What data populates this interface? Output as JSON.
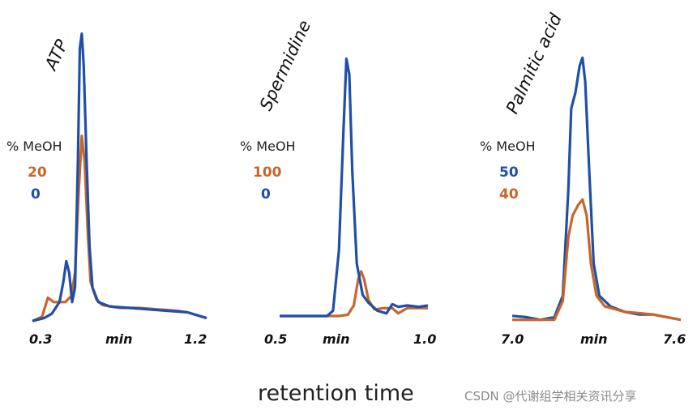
{
  "colors": {
    "blue": "#1f4fa8",
    "orange": "#c8662a"
  },
  "xlabel": "retention time",
  "watermark": "CSDN @代谢组学相关资讯分享",
  "chart_data": [
    {
      "type": "line",
      "title": "ATP",
      "legend_header": "% MeOH",
      "xlim": [
        0.3,
        1.2
      ],
      "ylim": [
        0,
        1
      ],
      "x_ticks": [
        "0.3",
        "min",
        "1.2"
      ],
      "series": [
        {
          "name": "20",
          "color": "orange",
          "points": [
            [
              0.3,
              0.005
            ],
            [
              0.35,
              0.02
            ],
            [
              0.38,
              0.085
            ],
            [
              0.41,
              0.07
            ],
            [
              0.44,
              0.07
            ],
            [
              0.47,
              0.07
            ],
            [
              0.5,
              0.09
            ],
            [
              0.52,
              0.17
            ],
            [
              0.54,
              0.46
            ],
            [
              0.555,
              0.64
            ],
            [
              0.57,
              0.55
            ],
            [
              0.585,
              0.32
            ],
            [
              0.6,
              0.14
            ],
            [
              0.63,
              0.08
            ],
            [
              0.66,
              0.06
            ],
            [
              0.75,
              0.05
            ],
            [
              0.85,
              0.05
            ],
            [
              0.95,
              0.045
            ],
            [
              1.05,
              0.04
            ],
            [
              1.1,
              0.035
            ],
            [
              1.15,
              0.025
            ],
            [
              1.2,
              0.015
            ]
          ]
        },
        {
          "name": "0",
          "color": "blue",
          "points": [
            [
              0.3,
              0.005
            ],
            [
              0.36,
              0.015
            ],
            [
              0.4,
              0.03
            ],
            [
              0.44,
              0.07
            ],
            [
              0.46,
              0.14
            ],
            [
              0.475,
              0.21
            ],
            [
              0.49,
              0.17
            ],
            [
              0.505,
              0.07
            ],
            [
              0.52,
              0.12
            ],
            [
              0.535,
              0.55
            ],
            [
              0.545,
              0.94
            ],
            [
              0.555,
              0.99
            ],
            [
              0.565,
              0.88
            ],
            [
              0.58,
              0.55
            ],
            [
              0.595,
              0.26
            ],
            [
              0.61,
              0.12
            ],
            [
              0.64,
              0.07
            ],
            [
              0.7,
              0.055
            ],
            [
              0.8,
              0.05
            ],
            [
              0.9,
              0.045
            ],
            [
              1.0,
              0.04
            ],
            [
              1.1,
              0.035
            ],
            [
              1.15,
              0.025
            ],
            [
              1.2,
              0.015
            ]
          ]
        }
      ]
    },
    {
      "type": "line",
      "title": "Spermidine",
      "legend_header": "% MeOH",
      "xlim": [
        0.5,
        1.0
      ],
      "ylim": [
        0,
        1
      ],
      "x_ticks": [
        "0.5",
        "min",
        "1.0"
      ],
      "series": [
        {
          "name": "100",
          "color": "orange",
          "points": [
            [
              0.5,
              0.0
            ],
            [
              0.6,
              0.0
            ],
            [
              0.7,
              0.0
            ],
            [
              0.73,
              0.005
            ],
            [
              0.75,
              0.04
            ],
            [
              0.765,
              0.14
            ],
            [
              0.775,
              0.17
            ],
            [
              0.785,
              0.14
            ],
            [
              0.8,
              0.06
            ],
            [
              0.82,
              0.025
            ],
            [
              0.85,
              0.03
            ],
            [
              0.88,
              0.03
            ],
            [
              0.9,
              0.01
            ],
            [
              0.93,
              0.03
            ],
            [
              0.97,
              0.03
            ],
            [
              1.0,
              0.03
            ]
          ]
        },
        {
          "name": "0",
          "color": "blue",
          "points": [
            [
              0.5,
              0.0
            ],
            [
              0.6,
              0.0
            ],
            [
              0.66,
              0.0
            ],
            [
              0.68,
              0.02
            ],
            [
              0.7,
              0.25
            ],
            [
              0.715,
              0.7
            ],
            [
              0.725,
              0.98
            ],
            [
              0.735,
              0.92
            ],
            [
              0.745,
              0.55
            ],
            [
              0.76,
              0.2
            ],
            [
              0.78,
              0.08
            ],
            [
              0.8,
              0.05
            ],
            [
              0.83,
              0.02
            ],
            [
              0.86,
              0.01
            ],
            [
              0.88,
              0.045
            ],
            [
              0.9,
              0.035
            ],
            [
              0.93,
              0.04
            ],
            [
              0.97,
              0.035
            ],
            [
              1.0,
              0.04
            ]
          ]
        }
      ]
    },
    {
      "type": "line",
      "title": "Palmitic acid",
      "legend_header": "% MeOH",
      "xlim": [
        7.0,
        7.6
      ],
      "ylim": [
        0,
        1
      ],
      "x_ticks": [
        "7.0",
        "min",
        "7.6"
      ],
      "series": [
        {
          "name": "50",
          "color": "blue",
          "points": [
            [
              7.0,
              0.025
            ],
            [
              7.05,
              0.02
            ],
            [
              7.1,
              0.01
            ],
            [
              7.15,
              0.02
            ],
            [
              7.18,
              0.1
            ],
            [
              7.2,
              0.5
            ],
            [
              7.21,
              0.8
            ],
            [
              7.225,
              0.86
            ],
            [
              7.24,
              0.96
            ],
            [
              7.25,
              0.99
            ],
            [
              7.26,
              0.9
            ],
            [
              7.275,
              0.55
            ],
            [
              7.29,
              0.22
            ],
            [
              7.31,
              0.1
            ],
            [
              7.35,
              0.06
            ],
            [
              7.4,
              0.04
            ],
            [
              7.45,
              0.03
            ],
            [
              7.5,
              0.03
            ],
            [
              7.55,
              0.02
            ],
            [
              7.6,
              0.01
            ]
          ]
        },
        {
          "name": "40",
          "color": "orange",
          "points": [
            [
              7.0,
              0.01
            ],
            [
              7.05,
              0.01
            ],
            [
              7.1,
              0.01
            ],
            [
              7.15,
              0.01
            ],
            [
              7.18,
              0.08
            ],
            [
              7.2,
              0.32
            ],
            [
              7.215,
              0.4
            ],
            [
              7.235,
              0.44
            ],
            [
              7.25,
              0.46
            ],
            [
              7.265,
              0.4
            ],
            [
              7.28,
              0.22
            ],
            [
              7.3,
              0.1
            ],
            [
              7.33,
              0.06
            ],
            [
              7.4,
              0.04
            ],
            [
              7.45,
              0.035
            ],
            [
              7.5,
              0.03
            ],
            [
              7.55,
              0.02
            ],
            [
              7.6,
              0.01
            ]
          ]
        }
      ]
    }
  ]
}
